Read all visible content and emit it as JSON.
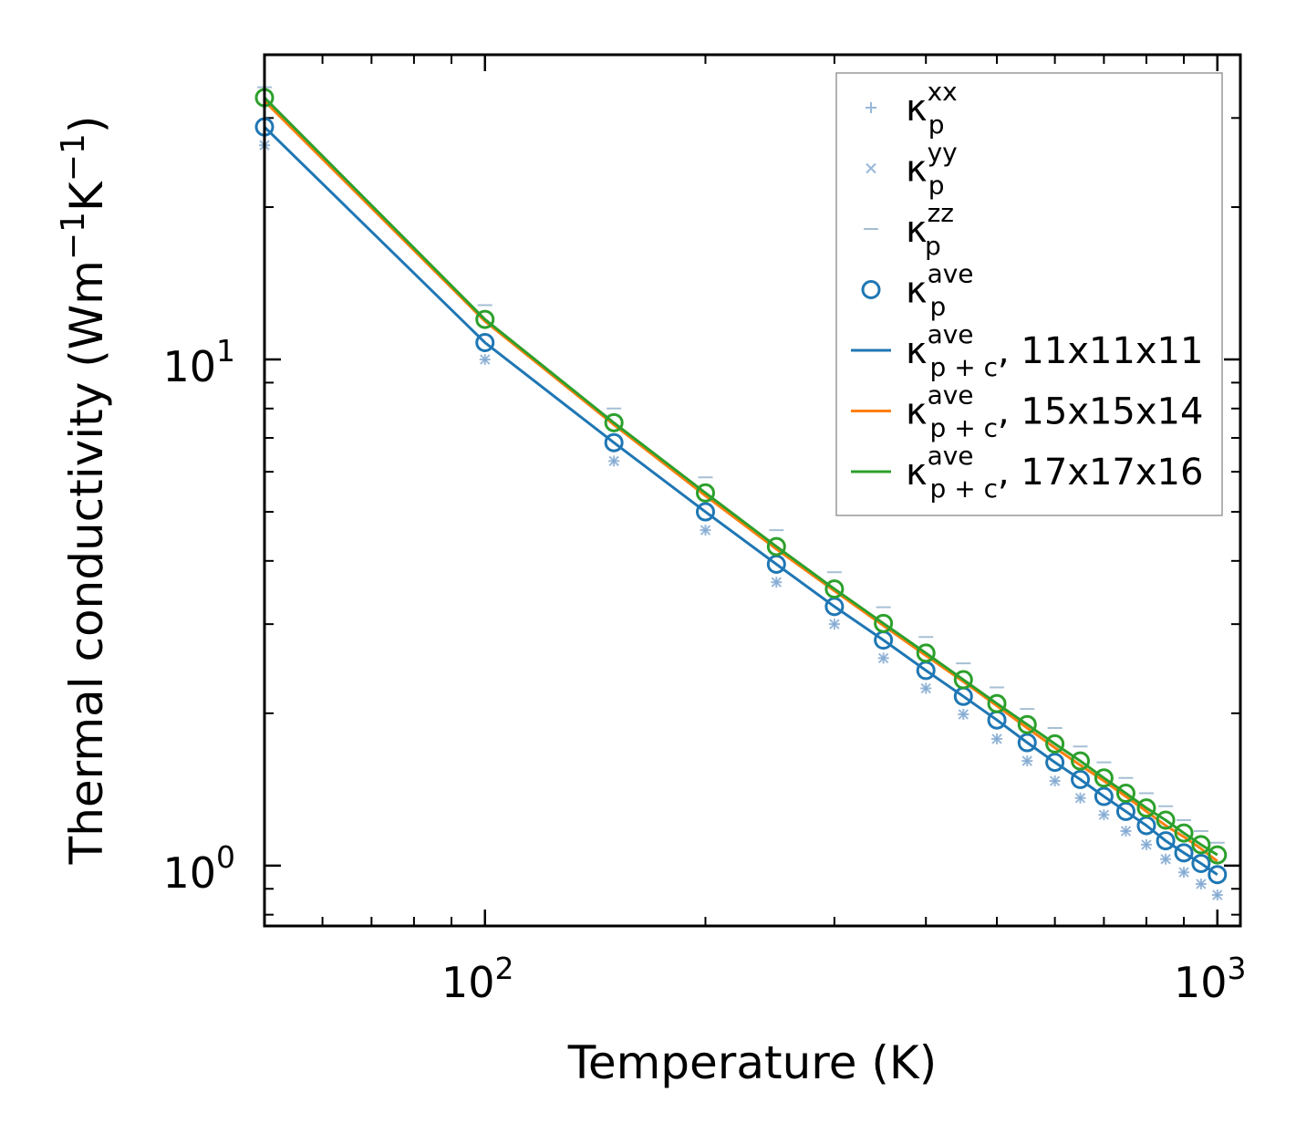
{
  "chart_data": {
    "type": "line",
    "title": "",
    "xlabel": "Temperature (K)",
    "ylabel": "Thermal conductivity (Wm",
    "ylabel_sup1": "−1",
    "ylabel_mid": "K",
    "ylabel_sup2": "−1",
    "ylabel_end": ")",
    "xscale": "log",
    "yscale": "log",
    "xlim": [
      50,
      1075
    ],
    "ylim": [
      0.76,
      40
    ],
    "x_major_ticks": [
      {
        "value": 100,
        "base": "10",
        "exp": "2"
      },
      {
        "value": 1000,
        "base": "10",
        "exp": "3"
      }
    ],
    "y_major_ticks": [
      {
        "value": 1,
        "base": "10",
        "exp": "0"
      },
      {
        "value": 10,
        "base": "10",
        "exp": "1"
      }
    ],
    "legend_position": "top-right",
    "x": [
      50,
      100,
      150,
      200,
      250,
      300,
      350,
      400,
      450,
      500,
      550,
      600,
      650,
      700,
      750,
      800,
      850,
      900,
      950,
      1000
    ],
    "series": [
      {
        "name": "κ_p^xx",
        "kind": "marker",
        "marker": "plus",
        "color": "#7fa7d1",
        "legend": {
          "base": "κ",
          "sub": "p",
          "sup": "xx",
          "suffix": ""
        },
        "values": [
          26.5,
          10.0,
          6.3,
          4.6,
          3.63,
          3.0,
          2.57,
          2.24,
          1.99,
          1.78,
          1.61,
          1.47,
          1.36,
          1.26,
          1.17,
          1.1,
          1.03,
          0.97,
          0.92,
          0.875
        ]
      },
      {
        "name": "κ_p^yy",
        "kind": "marker",
        "marker": "x",
        "color": "#7fa7d1",
        "legend": {
          "base": "κ",
          "sub": "p",
          "sup": "yy",
          "suffix": ""
        },
        "values": [
          26.5,
          10.0,
          6.3,
          4.6,
          3.63,
          3.0,
          2.57,
          2.24,
          1.99,
          1.78,
          1.61,
          1.47,
          1.36,
          1.26,
          1.17,
          1.1,
          1.03,
          0.97,
          0.92,
          0.875
        ]
      },
      {
        "name": "κ_p^zz",
        "kind": "marker",
        "marker": "hline",
        "color": "#8fb0c9",
        "legend": {
          "base": "κ",
          "sub": "p",
          "sup": "zz",
          "suffix": ""
        },
        "values": [
          34.5,
          12.8,
          8.0,
          5.85,
          4.6,
          3.8,
          3.24,
          2.83,
          2.51,
          2.25,
          2.04,
          1.87,
          1.72,
          1.6,
          1.49,
          1.39,
          1.31,
          1.23,
          1.17,
          1.11
        ]
      },
      {
        "name": "κ_p^ave",
        "kind": "marker",
        "marker": "circle",
        "color": "#1f77b4",
        "legend": {
          "base": "κ",
          "sub": "p",
          "sup": "ave",
          "suffix": ""
        },
        "values": [
          28.8,
          10.8,
          6.85,
          5.0,
          3.94,
          3.25,
          2.79,
          2.43,
          2.16,
          1.94,
          1.75,
          1.6,
          1.48,
          1.37,
          1.28,
          1.2,
          1.12,
          1.06,
          1.01,
          0.96
        ]
      },
      {
        "name": "κ_p+c^ave, 11x11x11",
        "kind": "line",
        "color": "#1f77b4",
        "legend": {
          "base": "κ",
          "sub": "p + c",
          "sup": "ave",
          "suffix": ", 11x11x11"
        },
        "values": [
          28.8,
          10.8,
          6.85,
          5.0,
          3.94,
          3.25,
          2.79,
          2.43,
          2.16,
          1.94,
          1.75,
          1.6,
          1.48,
          1.37,
          1.28,
          1.2,
          1.12,
          1.06,
          1.01,
          0.96
        ]
      },
      {
        "name": "κ_p+c^ave, 15x15x14",
        "kind": "line",
        "color": "#ff7f0e",
        "legend": {
          "base": "κ",
          "sub": "p + c",
          "sup": "ave",
          "suffix": ", 15x15x14"
        },
        "values": [
          32.4,
          11.9,
          7.43,
          5.38,
          4.22,
          3.49,
          2.98,
          2.6,
          2.31,
          2.07,
          1.87,
          1.71,
          1.58,
          1.47,
          1.37,
          1.28,
          1.2,
          1.14,
          1.08,
          1.02
        ]
      },
      {
        "name": "κ_p+c^ave, 17x17x16",
        "kind": "line",
        "color": "#2ca02c",
        "legend": {
          "base": "κ",
          "sub": "p + c",
          "sup": "ave",
          "suffix": ", 17x17x16"
        },
        "values": [
          32.9,
          12.0,
          7.5,
          5.45,
          4.27,
          3.52,
          3.01,
          2.63,
          2.33,
          2.09,
          1.9,
          1.74,
          1.61,
          1.49,
          1.39,
          1.3,
          1.23,
          1.16,
          1.1,
          1.05
        ]
      },
      {
        "name": "green-circles",
        "kind": "marker",
        "marker": "circle",
        "color": "#2ca02c",
        "in_legend": false,
        "values": [
          32.9,
          12.0,
          7.5,
          5.45,
          4.27,
          3.52,
          3.01,
          2.63,
          2.33,
          2.09,
          1.9,
          1.74,
          1.61,
          1.49,
          1.39,
          1.3,
          1.23,
          1.16,
          1.1,
          1.05
        ]
      }
    ]
  }
}
